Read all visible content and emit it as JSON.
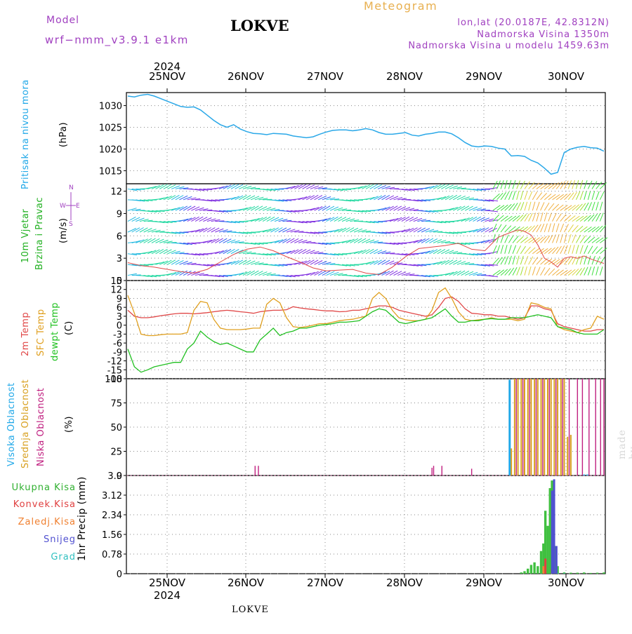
{
  "header": {
    "model_label": "Model",
    "model_version": "wrf−nmm_v3.9.1  e1km",
    "title": "LOKVE",
    "meteogram": "Meteogram",
    "lonlat": "lon,lat (20.0187E, 42.8312N)",
    "elevation": "Nadmorska Visina 1350m",
    "model_elevation": "Nadmorska Visina u modelu 1459.63m",
    "bottom_name": "LOKVE",
    "made_by": "made by Angel"
  },
  "colors": {
    "pressure": "#2aa8e8",
    "temp2m": "#e04848",
    "sfc": "#e0a020",
    "dewpt": "#20c020",
    "high": "#20a8e8",
    "mid": "#d8a020",
    "low": "#c02080",
    "total_precip": "#40c040",
    "conv": "#e04040",
    "frozen": "#f08030",
    "snow": "#5050d0",
    "grad": "#30c0c0",
    "label_purple": "#a040c0"
  },
  "chart_data": [
    {
      "type": "line",
      "panel": "pressure",
      "ylabel_main": "Pritisak na nivou mora",
      "ylabel_unit": "(hPa)",
      "ylim": [
        1012,
        1033
      ],
      "yticks": [
        1015,
        1020,
        1025,
        1030
      ],
      "time_labels": [
        "25NOV",
        "26NOV",
        "27NOV",
        "28NOV",
        "29NOV",
        "30NOV"
      ],
      "year_label": "2024",
      "grid": true,
      "series": [
        {
          "x": [
            0,
            2,
            4,
            6,
            8,
            10,
            12,
            14,
            16,
            18,
            20,
            22,
            24,
            26,
            28,
            30,
            32,
            34,
            36,
            38,
            40,
            42,
            44,
            46,
            48,
            50,
            52,
            54,
            56,
            58,
            60,
            62,
            64,
            66,
            68,
            70,
            72,
            74,
            76,
            78,
            80,
            82,
            84,
            86,
            88,
            90,
            92,
            94,
            96,
            98,
            100,
            102,
            104,
            106,
            108,
            110,
            112,
            114,
            116,
            118,
            120,
            122,
            124,
            126,
            128,
            130,
            132,
            134,
            136,
            138,
            140,
            142,
            144
          ],
          "values": [
            1032.2,
            1032.0,
            1032.4,
            1032.6,
            1032.2,
            1031.6,
            1031.0,
            1030.4,
            1029.8,
            1029.6,
            1029.7,
            1029.0,
            1027.8,
            1026.6,
            1025.6,
            1025.0,
            1025.6,
            1024.6,
            1024.0,
            1023.6,
            1023.5,
            1023.3,
            1023.6,
            1023.5,
            1023.4,
            1023.0,
            1022.8,
            1022.6,
            1022.8,
            1023.4,
            1023.9,
            1024.3,
            1024.4,
            1024.4,
            1024.2,
            1024.4,
            1024.7,
            1024.4,
            1023.8,
            1023.4,
            1023.4,
            1023.6,
            1023.8,
            1023.2,
            1023.0,
            1023.4,
            1023.6,
            1023.9,
            1023.9,
            1023.5,
            1022.6,
            1021.5,
            1020.7,
            1020.5,
            1020.7,
            1020.6,
            1020.2,
            1020.0,
            1018.4,
            1018.5,
            1018.3,
            1017.4,
            1016.8,
            1015.6,
            1014.2,
            1014.6,
            1019.2,
            1020.0,
            1020.4,
            1020.6,
            1020.3,
            1020.2,
            1019.5
          ]
        }
      ]
    },
    {
      "type": "line",
      "panel": "wind",
      "ylabel_main": "10m Vjetar",
      "ylabel_sub": "Brzina i Pravac",
      "ylabel_unit": "(m/s)",
      "compass": [
        "W",
        "E",
        "N",
        "S"
      ],
      "ylim": [
        0,
        13
      ],
      "yticks": [
        0,
        3,
        6,
        9,
        12
      ],
      "grid": true,
      "series": [
        {
          "name": "speed",
          "x": [
            0,
            4,
            8,
            12,
            16,
            20,
            24,
            28,
            32,
            36,
            40,
            44,
            48,
            52,
            56,
            60,
            64,
            68,
            72,
            76,
            80,
            84,
            88,
            92,
            96,
            100,
            104,
            108,
            112,
            116,
            118,
            120,
            122,
            124,
            126,
            128,
            130,
            132,
            134,
            136,
            138,
            140,
            144
          ],
          "values": [
            2.4,
            2.0,
            1.8,
            1.5,
            1.2,
            1.0,
            1.5,
            2.5,
            3.5,
            4.2,
            4.5,
            4.0,
            3.2,
            2.5,
            1.7,
            1.3,
            1.4,
            1.5,
            1.0,
            0.8,
            1.8,
            3.2,
            4.3,
            4.5,
            4.7,
            5.0,
            4.2,
            4.0,
            5.8,
            6.5,
            6.8,
            6.6,
            6.1,
            4.8,
            3.0,
            2.5,
            1.8,
            3.0,
            3.2,
            3.0,
            3.3,
            2.9,
            2.3
          ]
        }
      ]
    },
    {
      "type": "line",
      "panel": "temperature",
      "ylabel_lines": [
        "2m Temp",
        "SFC Temp",
        "dewpt Temp"
      ],
      "ylabel_unit": "(C)",
      "ylim": [
        -18,
        15
      ],
      "yticks": [
        -18,
        -15,
        -12,
        -9,
        -6,
        -3,
        0,
        3,
        6,
        9,
        12,
        15
      ],
      "grid": true,
      "series": [
        {
          "name": "2m Temp",
          "x": [
            0,
            2,
            4,
            6,
            8,
            10,
            12,
            14,
            16,
            18,
            20,
            22,
            24,
            26,
            28,
            30,
            32,
            34,
            36,
            38,
            40,
            42,
            44,
            46,
            48,
            50,
            52,
            54,
            56,
            58,
            60,
            62,
            64,
            66,
            68,
            70,
            72,
            74,
            76,
            78,
            80,
            82,
            84,
            86,
            88,
            90,
            92,
            94,
            96,
            98,
            100,
            102,
            104,
            106,
            108,
            110,
            112,
            114,
            116,
            118,
            120,
            122,
            124,
            126,
            128,
            130,
            132,
            134,
            136,
            138,
            140,
            142,
            144
          ],
          "values": [
            5.0,
            3.0,
            2.5,
            2.5,
            2.8,
            3.2,
            3.5,
            3.8,
            4.0,
            4.0,
            3.8,
            4.0,
            4.2,
            4.5,
            4.8,
            5.0,
            4.8,
            4.5,
            4.3,
            4.0,
            4.5,
            4.8,
            5.0,
            5.0,
            5.2,
            6.2,
            5.8,
            5.5,
            5.3,
            5.0,
            4.8,
            4.8,
            4.5,
            4.6,
            5.0,
            5.0,
            5.5,
            6.0,
            6.5,
            6.5,
            6.0,
            5.0,
            4.5,
            4.0,
            3.5,
            3.0,
            3.5,
            6.0,
            9.0,
            9.5,
            8.0,
            5.5,
            4.0,
            3.8,
            3.5,
            3.5,
            3.0,
            3.0,
            2.5,
            2.0,
            2.5,
            6.5,
            6.5,
            5.5,
            5.0,
            0.5,
            -0.5,
            -1.0,
            -1.5,
            -2.0,
            -2.0,
            -1.5,
            -1.5
          ]
        },
        {
          "name": "SFC Temp",
          "x": [
            0,
            2,
            4,
            6,
            8,
            10,
            12,
            14,
            16,
            18,
            20,
            22,
            24,
            26,
            28,
            30,
            32,
            34,
            36,
            38,
            40,
            42,
            44,
            46,
            48,
            50,
            52,
            54,
            56,
            58,
            60,
            62,
            64,
            66,
            68,
            70,
            72,
            74,
            76,
            78,
            80,
            82,
            84,
            86,
            88,
            90,
            92,
            94,
            96,
            98,
            100,
            102,
            104,
            106,
            108,
            110,
            112,
            114,
            116,
            118,
            120,
            122,
            124,
            126,
            128,
            130,
            132,
            134,
            136,
            138,
            140,
            142,
            144
          ],
          "values": [
            10.0,
            4.0,
            -3.0,
            -3.5,
            -3.5,
            -3.2,
            -3.0,
            -3.0,
            -3.0,
            -2.5,
            5.0,
            8.0,
            7.5,
            2.0,
            -1.0,
            -1.5,
            -1.5,
            -1.5,
            -1.3,
            -1.0,
            -1.0,
            7.0,
            9.0,
            7.5,
            2.5,
            -0.5,
            -0.8,
            -0.5,
            0.0,
            0.5,
            0.5,
            1.0,
            1.5,
            1.8,
            2.0,
            2.5,
            3.0,
            9.0,
            11.0,
            9.0,
            5.0,
            2.5,
            1.8,
            1.5,
            1.5,
            2.0,
            5.0,
            11.0,
            12.5,
            9.0,
            4.5,
            2.0,
            1.5,
            1.8,
            2.0,
            2.5,
            2.0,
            2.0,
            2.0,
            1.5,
            2.0,
            7.5,
            7.0,
            6.0,
            5.5,
            -0.5,
            -1.5,
            -2.0,
            -2.5,
            -1.5,
            -1.0,
            3.0,
            2.0
          ]
        },
        {
          "name": "dewpt Temp",
          "x": [
            0,
            2,
            4,
            6,
            8,
            10,
            12,
            14,
            16,
            18,
            20,
            22,
            24,
            26,
            28,
            30,
            32,
            34,
            36,
            38,
            40,
            42,
            44,
            46,
            48,
            50,
            52,
            54,
            56,
            58,
            60,
            62,
            64,
            66,
            68,
            70,
            72,
            74,
            76,
            78,
            80,
            82,
            84,
            86,
            88,
            90,
            92,
            94,
            96,
            98,
            100,
            102,
            104,
            106,
            108,
            110,
            112,
            114,
            116,
            118,
            120,
            122,
            124,
            126,
            128,
            130,
            132,
            134,
            136,
            138,
            140,
            142,
            144
          ],
          "values": [
            -8.0,
            -14.0,
            -15.8,
            -15.0,
            -14.0,
            -13.5,
            -13.0,
            -12.5,
            -12.5,
            -8.0,
            -6.0,
            -2.0,
            -4.0,
            -5.5,
            -6.5,
            -6.0,
            -7.0,
            -8.0,
            -9.0,
            -9.0,
            -5.0,
            -3.0,
            -1.0,
            -3.5,
            -2.5,
            -2.0,
            -1.0,
            -1.0,
            -0.5,
            0.0,
            0.2,
            0.5,
            1.0,
            1.0,
            1.2,
            1.5,
            3.0,
            4.5,
            5.5,
            5.0,
            3.0,
            1.0,
            0.5,
            1.0,
            1.5,
            2.0,
            2.5,
            4.0,
            5.5,
            3.0,
            1.0,
            1.0,
            1.5,
            1.5,
            2.0,
            2.2,
            2.0,
            2.0,
            2.5,
            2.5,
            2.5,
            3.0,
            3.5,
            3.0,
            2.5,
            -0.5,
            -1.0,
            -1.5,
            -2.5,
            -3.0,
            -3.0,
            -3.0,
            -1.5
          ]
        }
      ]
    },
    {
      "type": "bar",
      "panel": "clouds",
      "ylabel_lines": [
        "Visoka Oblacnost",
        "Srednja Oblacnost",
        "Niska Oblacnost"
      ],
      "ylabel_unit": "(%)",
      "ylim": [
        0,
        100
      ],
      "yticks": [
        0,
        25,
        50,
        75,
        100
      ],
      "grid": true,
      "series": [
        {
          "name": "Visoka Oblacnost",
          "x": [
            115.5,
            138,
            139
          ],
          "values": [
            99,
            1,
            1
          ]
        },
        {
          "name": "Srednja Oblacnost",
          "x": [
            116,
            117,
            118,
            119,
            120,
            121,
            122,
            123,
            124,
            125,
            126,
            127,
            128,
            129,
            130,
            131,
            132,
            133,
            134
          ],
          "values": [
            28,
            100,
            100,
            100,
            100,
            100,
            100,
            100,
            100,
            100,
            100,
            100,
            100,
            100,
            100,
            100,
            100,
            40,
            42
          ]
        },
        {
          "name": "Niska Oblacnost",
          "x": [
            38.5,
            39.5,
            92,
            92.5,
            95,
            104,
            117.5,
            119.5,
            121.5,
            123.5,
            125.5,
            127.5,
            129.5,
            131.5,
            133.5,
            136,
            137.5,
            139.5,
            141.5,
            143,
            144
          ],
          "values": [
            10,
            10,
            8,
            10,
            10,
            7,
            100,
            100,
            100,
            100,
            100,
            100,
            100,
            100,
            100,
            100,
            100,
            100,
            100,
            100,
            100
          ]
        }
      ]
    },
    {
      "type": "bar",
      "panel": "precip",
      "ylabel_unit": "1hr Precip (mm)",
      "ylim": [
        0,
        3.9
      ],
      "yticks": [
        0,
        0.78,
        1.56,
        2.34,
        3.12,
        3.9
      ],
      "legend": [
        "Ukupna Kisa",
        "Konvek.Kisa",
        "Zaledj.Kisa",
        "Snijeg",
        "Grad"
      ],
      "grid": true,
      "series": [
        {
          "name": "Ukupna Kisa",
          "x": [
            119,
            120,
            121,
            122,
            123,
            124,
            125,
            125.7,
            126.3,
            127,
            127.7,
            128.3,
            129,
            130,
            132,
            134,
            136,
            138,
            140,
            142,
            144
          ],
          "values": [
            0.05,
            0.1,
            0.2,
            0.35,
            0.45,
            0.3,
            0.9,
            1.2,
            2.5,
            1.9,
            3.4,
            3.7,
            1.1,
            0.3,
            0.05,
            0.04,
            0.04,
            0.05,
            0.03,
            0.04,
            0.05
          ]
        },
        {
          "name": "Konvek.Kisa",
          "x": [
            126.3,
            128.3
          ],
          "values": [
            0.6,
            0.2
          ]
        },
        {
          "name": "Zaledj.Kisa",
          "x": [
            125.7,
            129
          ],
          "values": [
            0.3,
            0.15
          ]
        },
        {
          "name": "Snijeg",
          "x": [
            127.7,
            128.3,
            129
          ],
          "values": [
            3.3,
            3.75,
            1.1
          ]
        },
        {
          "name": "Grad",
          "x": [
            130,
            132
          ],
          "values": [
            0.02,
            0.02
          ]
        }
      ]
    }
  ]
}
